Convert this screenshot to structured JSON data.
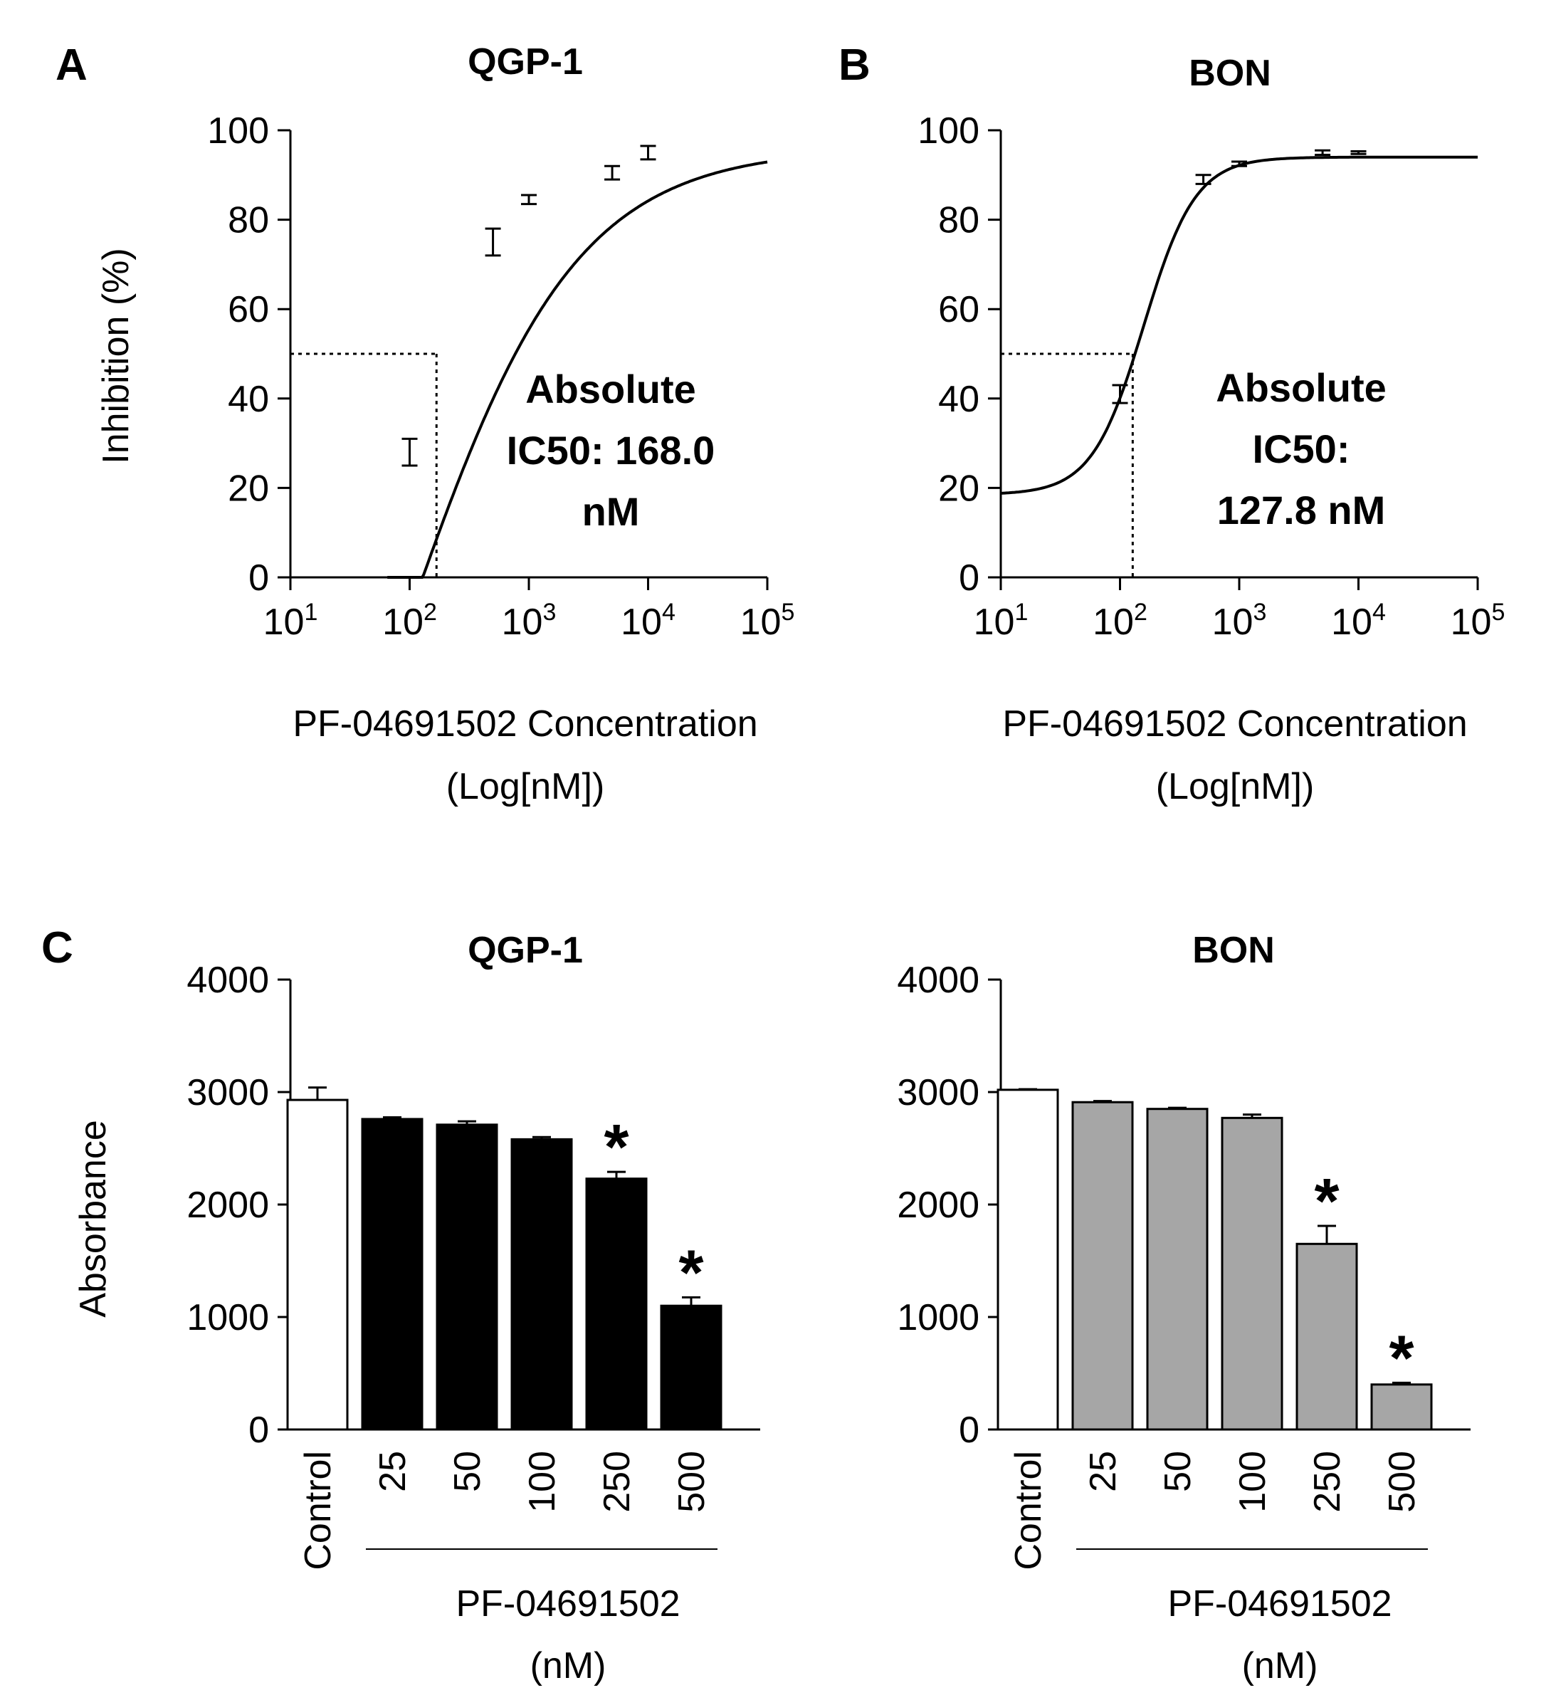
{
  "panels": {
    "A": {
      "letter": "A",
      "title": "QGP-1",
      "ylabel": "Inhibition (%)",
      "xlabel_line1": "PF-04691502 Concentration",
      "xlabel_line2": "(Log[nM])",
      "annotation": [
        "Absolute",
        "IC50: 168.0",
        "nM"
      ]
    },
    "B": {
      "letter": "B",
      "title": "BON",
      "ylabel": "",
      "xlabel_line1": "PF-04691502 Concentration",
      "xlabel_line2": "(Log[nM])",
      "annotation": [
        "Absolute",
        "IC50:",
        "127.8 nM"
      ]
    },
    "C": {
      "letter": "C",
      "left_title": "QGP-1",
      "right_title": "BON",
      "ylabel": "Absorbance",
      "group_label_line1": "PF-04691502",
      "group_label_line2": "(nM)"
    }
  },
  "chart_data": [
    {
      "id": "A",
      "type": "scatter",
      "title": "QGP-1",
      "xlabel": "PF-04691502 Concentration (Log[nM])",
      "ylabel": "Inhibition (%)",
      "xscale": "log",
      "xlim": [
        10,
        100000
      ],
      "ylim": [
        0,
        100
      ],
      "x_ticks": [
        {
          "base": "10",
          "exp": "1"
        },
        {
          "base": "10",
          "exp": "2"
        },
        {
          "base": "10",
          "exp": "3"
        },
        {
          "base": "10",
          "exp": "4"
        },
        {
          "base": "10",
          "exp": "5"
        }
      ],
      "y_ticks": [
        0,
        20,
        40,
        60,
        80,
        100
      ],
      "points": [
        {
          "x": 100,
          "y": 28,
          "err": 3
        },
        {
          "x": 500,
          "y": 75,
          "err": 3
        },
        {
          "x": 1000,
          "y": 84.5,
          "err": 1
        },
        {
          "x": 5000,
          "y": 90.5,
          "err": 1.5
        },
        {
          "x": 10000,
          "y": 95,
          "err": 1.5
        }
      ],
      "fit": {
        "model": "sigmoid",
        "bottom": -125,
        "top": 96,
        "ic50": 83,
        "hill": 0.6,
        "x_start": 65,
        "x_end": 100000
      },
      "ic50_marker": {
        "x": 168.0,
        "y": 50
      },
      "grid": false
    },
    {
      "id": "B",
      "type": "scatter",
      "title": "BON",
      "xlabel": "PF-04691502 Concentration (Log[nM])",
      "ylabel": "",
      "xscale": "log",
      "xlim": [
        10,
        100000
      ],
      "ylim": [
        0,
        100
      ],
      "x_ticks": [
        {
          "base": "10",
          "exp": "1"
        },
        {
          "base": "10",
          "exp": "2"
        },
        {
          "base": "10",
          "exp": "3"
        },
        {
          "base": "10",
          "exp": "4"
        },
        {
          "base": "10",
          "exp": "5"
        }
      ],
      "y_ticks": [
        0,
        20,
        40,
        60,
        80,
        100
      ],
      "points": [
        {
          "x": 100,
          "y": 41,
          "err": 2
        },
        {
          "x": 500,
          "y": 89,
          "err": 1
        },
        {
          "x": 1000,
          "y": 92.5,
          "err": 0.5
        },
        {
          "x": 5000,
          "y": 95,
          "err": 0.5
        },
        {
          "x": 10000,
          "y": 95,
          "err": 0.3
        }
      ],
      "fit": {
        "model": "sigmoid",
        "bottom": 18.5,
        "top": 94,
        "ic50": 158,
        "hill": 2.0,
        "x_start": 10,
        "x_end": 100000
      },
      "ic50_marker": {
        "x": 127.8,
        "y": 50
      },
      "grid": false
    },
    {
      "id": "C-left",
      "type": "bar",
      "title": "QGP-1",
      "ylabel": "Absorbance",
      "ylim": [
        0,
        4000
      ],
      "y_ticks": [
        0,
        1000,
        2000,
        3000,
        4000
      ],
      "categories": [
        "Control",
        "25",
        "50",
        "100",
        "250",
        "500"
      ],
      "values": [
        2930,
        2760,
        2710,
        2580,
        2230,
        1100
      ],
      "errors": [
        110,
        15,
        30,
        20,
        60,
        75
      ],
      "significant": [
        false,
        false,
        false,
        false,
        true,
        true
      ],
      "significance_marker": "*",
      "colors": [
        "#ffffff",
        "#000000",
        "#000000",
        "#000000",
        "#000000",
        "#000000"
      ],
      "group_label": "PF-04691502 (nM)",
      "grid": false
    },
    {
      "id": "C-right",
      "type": "bar",
      "title": "BON",
      "ylabel": "",
      "ylim": [
        0,
        4000
      ],
      "y_ticks": [
        0,
        1000,
        2000,
        3000,
        4000
      ],
      "categories": [
        "Control",
        "25",
        "50",
        "100",
        "250",
        "500"
      ],
      "values": [
        3020,
        2910,
        2850,
        2770,
        1650,
        400
      ],
      "errors": [
        5,
        10,
        10,
        30,
        160,
        15
      ],
      "significant": [
        false,
        false,
        false,
        false,
        true,
        true
      ],
      "significance_marker": "*",
      "colors": [
        "#ffffff",
        "#a6a6a6",
        "#a6a6a6",
        "#a6a6a6",
        "#a6a6a6",
        "#a6a6a6"
      ],
      "group_label": "PF-04691502 (nM)",
      "grid": false
    }
  ]
}
